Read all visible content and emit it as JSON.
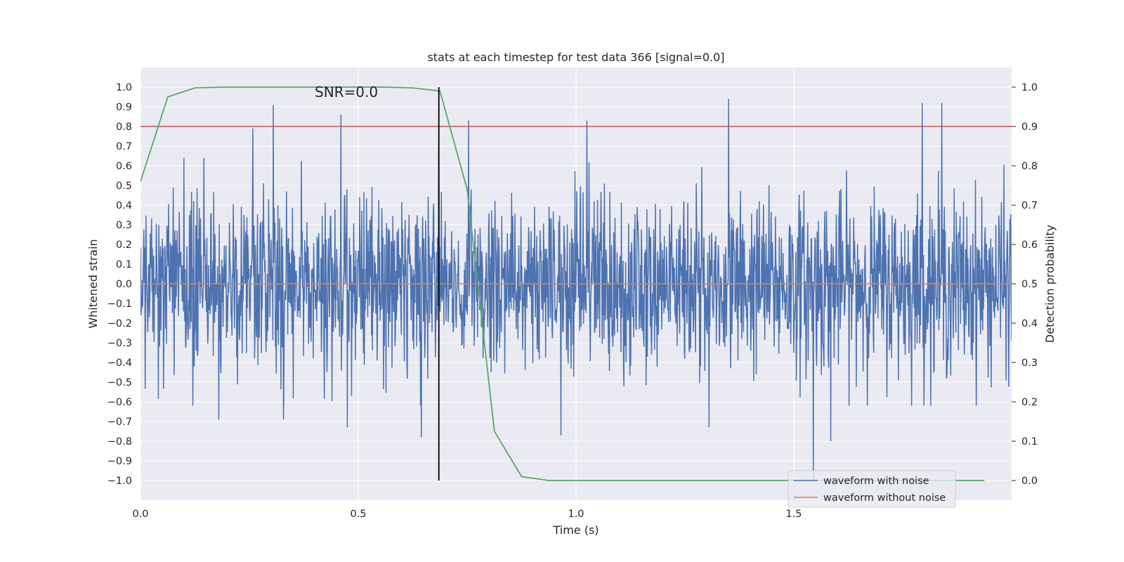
{
  "chart_data": {
    "type": "line",
    "title": "stats at each timestep for test data 366 [signal=0.0]",
    "xlabel": "Time (s)",
    "ylabel": "Whitened strain",
    "y2label": "Detection probability",
    "xlim": [
      0.0,
      2.0
    ],
    "ylim": [
      -1.1,
      1.1
    ],
    "y2lim": [
      -0.05,
      1.05
    ],
    "xticks": [
      "0.0",
      "0.5",
      "1.0",
      "1.5"
    ],
    "xtick_values": [
      0.0,
      0.5,
      1.0,
      1.5
    ],
    "yticks": [
      "1.0",
      "0.9",
      "0.8",
      "0.7",
      "0.6",
      "0.5",
      "0.4",
      "0.3",
      "0.2",
      "0.1",
      "0.0",
      "-0.1",
      "-0.2",
      "-0.3",
      "-0.4",
      "-0.5",
      "-0.6",
      "-0.7",
      "-0.8",
      "-0.9",
      "-1.0"
    ],
    "ytick_values": [
      1.0,
      0.9,
      0.8,
      0.7,
      0.6,
      0.5,
      0.4,
      0.3,
      0.2,
      0.1,
      0.0,
      -0.1,
      -0.2,
      -0.3,
      -0.4,
      -0.5,
      -0.6,
      -0.7,
      -0.8,
      -0.9,
      -1.0
    ],
    "y2ticks": [
      "1.0",
      "0.9",
      "0.8",
      "0.7",
      "0.6",
      "0.5",
      "0.4",
      "0.3",
      "0.2",
      "0.1",
      "0.0"
    ],
    "y2tick_values": [
      1.0,
      0.9,
      0.8,
      0.7,
      0.6,
      0.5,
      0.4,
      0.3,
      0.2,
      0.1,
      0.0
    ],
    "grid": true,
    "legend_position": "lower-right",
    "annotation": "SNR=0.0",
    "annotation_at": {
      "x": 0.4,
      "y": 0.95
    },
    "vline_x": 0.685,
    "threshold": 0.9,
    "series": [
      {
        "name": "waveform with noise",
        "axis": "left",
        "color": "#4c72b0",
        "noise_sigma": 0.22,
        "t_start": 0.0,
        "t_end": 2.0,
        "num_samples": 2048,
        "peaks": [
          {
            "x": 0.305,
            "y": 0.91
          },
          {
            "x": 0.46,
            "y": 0.86
          },
          {
            "x": 0.258,
            "y": 0.79
          },
          {
            "x": 0.685,
            "y": 0.77
          },
          {
            "x": 0.753,
            "y": 0.83
          },
          {
            "x": 1.025,
            "y": 0.83
          },
          {
            "x": 1.35,
            "y": 0.94
          },
          {
            "x": 1.795,
            "y": 0.92
          },
          {
            "x": 1.84,
            "y": 0.92
          },
          {
            "x": 1.545,
            "y": -1.0
          },
          {
            "x": 1.585,
            "y": -0.8
          },
          {
            "x": 0.645,
            "y": -0.78
          },
          {
            "x": 0.965,
            "y": -0.77
          },
          {
            "x": 0.475,
            "y": -0.73
          },
          {
            "x": 1.305,
            "y": -0.73
          },
          {
            "x": 0.18,
            "y": -0.69
          },
          {
            "x": 0.328,
            "y": -0.69
          }
        ]
      },
      {
        "name": "waveform without noise",
        "axis": "left",
        "color": "#dd8452",
        "x": [
          0.0,
          2.0
        ],
        "y": [
          0.0,
          0.0
        ]
      },
      {
        "name": "",
        "axis": "right",
        "color": "#55a868",
        "x": [
          0.0,
          0.0625,
          0.125,
          0.1875,
          0.25,
          0.3125,
          0.375,
          0.4375,
          0.5,
          0.5625,
          0.625,
          0.6875,
          0.75,
          0.8125,
          0.875,
          0.9375,
          1.0,
          1.0625,
          1.125,
          1.1875,
          1.25,
          1.3125,
          1.375,
          1.4375,
          1.5,
          1.5625,
          1.625,
          1.6875,
          1.75,
          1.8125,
          1.875,
          1.9375
        ],
        "y": [
          0.76,
          0.975,
          0.998,
          1.0,
          1.0,
          1.0,
          1.0,
          1.0,
          1.0,
          1.0,
          0.998,
          0.99,
          0.74,
          0.125,
          0.01,
          0.0,
          0.0,
          0.0,
          0.0,
          0.0,
          0.0,
          0.0,
          0.0,
          0.0,
          0.0,
          0.0,
          0.0,
          0.0,
          0.0,
          0.0,
          0.0,
          0.0
        ]
      }
    ],
    "colors": {
      "background": "#eaeaf2",
      "grid": "#ffffff",
      "threshold": "#c44e52",
      "vline": "#000000"
    }
  }
}
